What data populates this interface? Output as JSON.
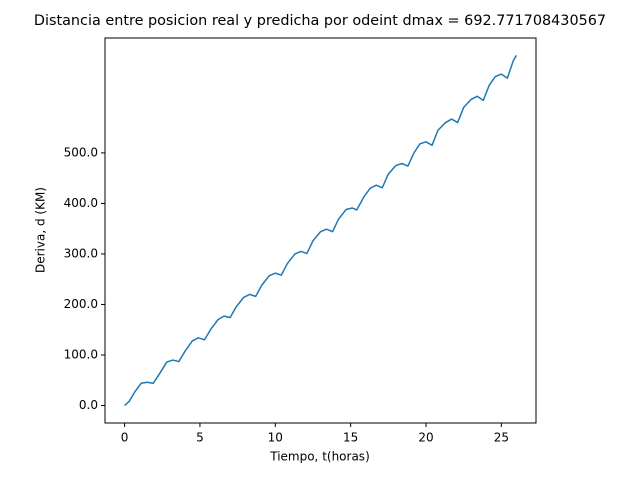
{
  "chart_data": {
    "type": "line",
    "title": "Distancia entre posicion real y predicha por odeint dmax = 692.771708430567",
    "xlabel": "Tiempo, t(horas)",
    "ylabel": "Deriva, d (KM)",
    "x": [
      0,
      0.3,
      0.7,
      1.1,
      1.5,
      1.9,
      2.3,
      2.8,
      3.2,
      3.6,
      4.0,
      4.5,
      4.9,
      5.3,
      5.7,
      6.2,
      6.6,
      7.0,
      7.4,
      7.9,
      8.3,
      8.7,
      9.1,
      9.6,
      10.0,
      10.4,
      10.8,
      11.3,
      11.7,
      12.1,
      12.5,
      13.0,
      13.4,
      13.8,
      14.2,
      14.7,
      15.1,
      15.4,
      15.9,
      16.3,
      16.7,
      17.1,
      17.5,
      18.0,
      18.4,
      18.8,
      19.2,
      19.6,
      20.0,
      20.4,
      20.8,
      21.3,
      21.7,
      22.1,
      22.5,
      23.0,
      23.4,
      23.8,
      24.2,
      24.6,
      25.0,
      25.4,
      25.8,
      26.0
    ],
    "series": [
      {
        "color": "#1f77b4",
        "values": [
          0,
          8,
          28,
          44,
          46,
          44,
          62,
          86,
          90,
          87,
          107,
          128,
          134,
          130,
          150,
          170,
          177,
          174,
          195,
          214,
          220,
          216,
          238,
          257,
          262,
          258,
          281,
          300,
          305,
          301,
          326,
          344,
          349,
          344,
          369,
          388,
          391,
          387,
          414,
          430,
          436,
          431,
          458,
          475,
          479,
          474,
          500,
          518,
          522,
          515,
          545,
          560,
          567,
          560,
          590,
          606,
          612,
          604,
          634,
          651,
          656,
          648,
          683,
          693
        ]
      }
    ],
    "xlim": [
      -1.3,
      27.3
    ],
    "xticks": [
      0,
      5,
      10,
      15,
      20,
      25
    ],
    "ylim": [
      -34.6,
      727.4
    ],
    "yticks": [
      {
        "value": 0,
        "label": "0.0"
      },
      {
        "value": 100,
        "label": "100.0"
      },
      {
        "value": 200,
        "label": "200.0"
      },
      {
        "value": 300,
        "label": "300.0"
      },
      {
        "value": 400,
        "label": "400.0"
      },
      {
        "value": 500,
        "label": "500.0"
      }
    ],
    "grid": false
  }
}
